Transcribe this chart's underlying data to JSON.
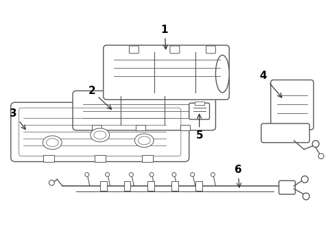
{
  "background_color": "#ffffff",
  "line_color": "#555555",
  "label_color": "#000000",
  "figsize": [
    4.9,
    3.6
  ],
  "dpi": 100
}
